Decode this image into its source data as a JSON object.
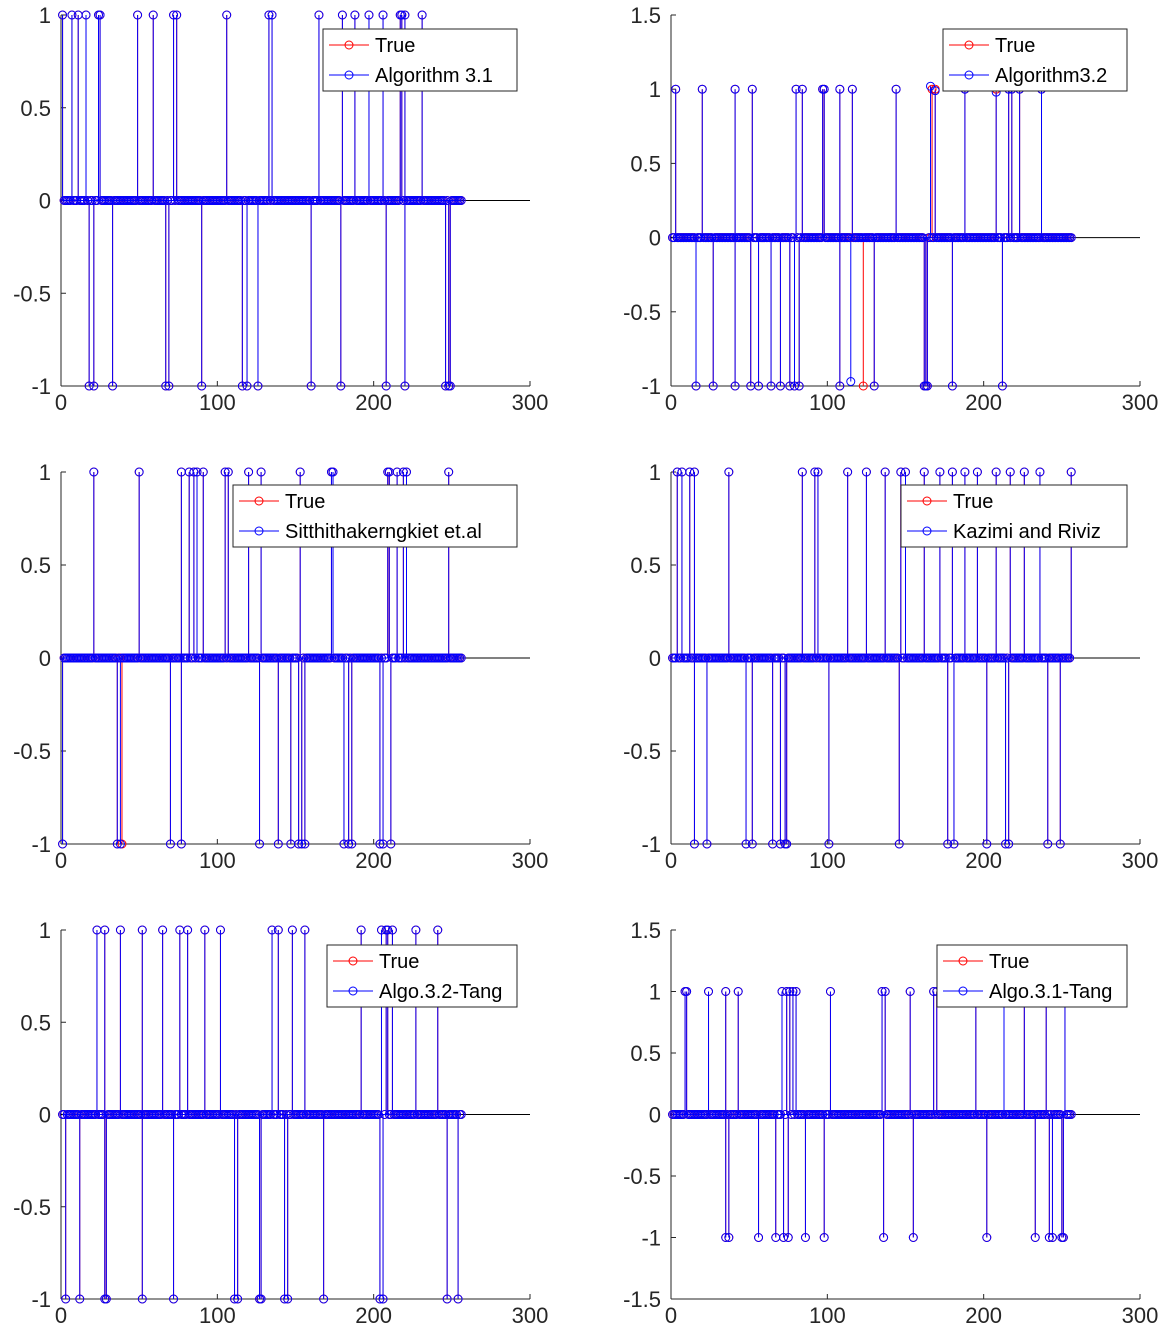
{
  "chart_data": [
    {
      "type": "stem",
      "xlim": [
        0,
        300
      ],
      "ylim": [
        -1,
        1
      ],
      "xticks": [
        "0",
        "100",
        "200",
        "300"
      ],
      "yticks": [
        "-1",
        "-0.5",
        "0",
        "0.5",
        "1"
      ],
      "xlabel": "",
      "ylabel": "",
      "title": "",
      "legend_position": "top-right",
      "series": [
        {
          "name": "True",
          "color": "#ff0000",
          "marker": "circle",
          "x": [
            1,
            7,
            11,
            16,
            24,
            25,
            49,
            59,
            72,
            74,
            106,
            133,
            135,
            165,
            180,
            188,
            197,
            206,
            217,
            218,
            220,
            231,
            18,
            21,
            33,
            67,
            69,
            90,
            116,
            119,
            126,
            160,
            179,
            208,
            220,
            246,
            248,
            249
          ],
          "y": [
            1,
            1,
            1,
            1,
            1,
            1,
            1,
            1,
            1,
            1,
            1,
            1,
            1,
            1,
            1,
            1,
            1,
            1,
            1,
            1,
            1,
            1,
            -1,
            -1,
            -1,
            -1,
            -1,
            -1,
            -1,
            -1,
            -1,
            -1,
            -1,
            -1,
            -1,
            -1,
            -1,
            -1
          ]
        },
        {
          "name": "Algorithm 3.1",
          "color": "#0000ff",
          "marker": "circle",
          "x": [
            1,
            7,
            11,
            16,
            24,
            25,
            49,
            59,
            72,
            74,
            106,
            133,
            135,
            165,
            180,
            188,
            197,
            206,
            217,
            218,
            220,
            231,
            18,
            21,
            33,
            67,
            69,
            90,
            116,
            119,
            126,
            160,
            179,
            208,
            220,
            246,
            248,
            249
          ],
          "y": [
            1,
            1,
            1,
            1,
            1,
            1,
            1,
            1,
            1,
            1,
            1,
            1,
            1,
            1,
            1,
            1,
            1,
            1,
            1,
            1,
            1,
            1,
            -1,
            -1,
            -1,
            -1,
            -1,
            -1,
            -1,
            -1,
            -1,
            -1,
            -1,
            -1,
            -1,
            -1,
            -1,
            -1
          ]
        }
      ]
    },
    {
      "type": "stem",
      "xlim": [
        0,
        300
      ],
      "ylim": [
        -1,
        1.5
      ],
      "xticks": [
        "0",
        "100",
        "200",
        "300"
      ],
      "yticks": [
        "-1",
        "-0.5",
        "0",
        "0.5",
        "1",
        "1.5"
      ],
      "xlabel": "",
      "ylabel": "",
      "title": "",
      "legend_position": "top-right",
      "series": [
        {
          "name": "True",
          "color": "#ff0000",
          "marker": "circle",
          "x": [
            3,
            20,
            41,
            52,
            80,
            84,
            97,
            98,
            108,
            116,
            144,
            167,
            169,
            188,
            208,
            216,
            218,
            223,
            237,
            16,
            27,
            41,
            51,
            56,
            64,
            70,
            76,
            79,
            82,
            108,
            123,
            130,
            162,
            163,
            164,
            180,
            212
          ],
          "y": [
            1,
            1,
            1,
            1,
            1,
            1,
            1,
            1,
            1,
            1,
            1,
            1,
            1,
            1,
            1,
            1,
            1,
            1,
            1,
            -1,
            -1,
            -1,
            -1,
            -1,
            -1,
            -1,
            -1,
            -1,
            -1,
            -1,
            -1,
            -1,
            -1,
            -1,
            -1,
            -1,
            -1
          ]
        },
        {
          "name": "Algorithm3.2",
          "color": "#0000ff",
          "marker": "circle",
          "x": [
            3,
            20,
            41,
            52,
            80,
            84,
            97,
            98,
            108,
            116,
            144,
            166,
            169,
            188,
            208,
            216,
            218,
            223,
            237,
            16,
            27,
            41,
            51,
            56,
            64,
            70,
            76,
            79,
            82,
            108,
            115,
            130,
            162,
            163,
            164,
            180,
            212
          ],
          "y": [
            1,
            1,
            1,
            1,
            1,
            1,
            1,
            1,
            1,
            1,
            1,
            1.02,
            0.99,
            1,
            0.98,
            1,
            1,
            1,
            1,
            -1,
            -1,
            -1,
            -1,
            -1,
            -1,
            -1,
            -1,
            -1,
            -1,
            -1,
            -0.97,
            -1,
            -1,
            -1,
            -1,
            -1,
            -1
          ]
        }
      ]
    },
    {
      "type": "stem",
      "xlim": [
        0,
        300
      ],
      "ylim": [
        -1,
        1
      ],
      "xticks": [
        "0",
        "100",
        "200",
        "300"
      ],
      "yticks": [
        "-1",
        "-0.5",
        "0",
        "0.5",
        "1"
      ],
      "xlabel": "",
      "ylabel": "",
      "title": "",
      "legend_position": "top-right",
      "series": [
        {
          "name": "True",
          "color": "#ff0000",
          "marker": "circle",
          "x": [
            21,
            50,
            77,
            82,
            85,
            87,
            91,
            105,
            107,
            120,
            128,
            153,
            173,
            174,
            209,
            210,
            215,
            219,
            221,
            248,
            1,
            36,
            39,
            70,
            77,
            127,
            139,
            147,
            152,
            154,
            156,
            181,
            184,
            186,
            204,
            206,
            211
          ],
          "y": [
            1,
            1,
            1,
            1,
            1,
            1,
            1,
            1,
            1,
            1,
            1,
            1,
            1,
            1,
            1,
            1,
            1,
            1,
            1,
            1,
            -1,
            -1,
            -1,
            -1,
            -1,
            -1,
            -1,
            -1,
            -1,
            -1,
            -1,
            -1,
            -1,
            -1,
            -1,
            -1,
            -1
          ]
        },
        {
          "name": "Sitthithakerngkiet et.al",
          "color": "#0000ff",
          "marker": "circle",
          "x": [
            21,
            50,
            77,
            82,
            85,
            87,
            91,
            105,
            107,
            120,
            128,
            153,
            173,
            174,
            209,
            210,
            215,
            219,
            221,
            248,
            1,
            36,
            38,
            70,
            77,
            127,
            139,
            147,
            152,
            154,
            156,
            181,
            184,
            186,
            204,
            206,
            211
          ],
          "y": [
            1,
            1,
            1,
            1,
            1,
            1,
            1,
            1,
            1,
            1,
            1,
            1,
            1,
            1,
            1,
            1,
            1,
            1,
            1,
            1,
            -1,
            -1,
            -1,
            -1,
            -1,
            -1,
            -1,
            -1,
            -1,
            -1,
            -1,
            -1,
            -1,
            -1,
            -1,
            -1,
            -1
          ]
        }
      ]
    },
    {
      "type": "stem",
      "xlim": [
        0,
        300
      ],
      "ylim": [
        -1,
        1
      ],
      "xticks": [
        "0",
        "100",
        "200",
        "300"
      ],
      "yticks": [
        "-1",
        "-0.5",
        "0",
        "0.5",
        "1"
      ],
      "xlabel": "",
      "ylabel": "",
      "title": "",
      "legend_position": "top-right",
      "series": [
        {
          "name": "True",
          "color": "#ff0000",
          "marker": "circle",
          "x": [
            4,
            7,
            12,
            15,
            37,
            84,
            92,
            94,
            113,
            125,
            137,
            147,
            150,
            162,
            172,
            180,
            188,
            196,
            208,
            217,
            226,
            236,
            256,
            15,
            23,
            48,
            52,
            65,
            70,
            73,
            74,
            101,
            146,
            177,
            181,
            202,
            214,
            216,
            241,
            249
          ],
          "y": [
            1,
            1,
            1,
            1,
            1,
            1,
            1,
            1,
            1,
            1,
            1,
            1,
            1,
            1,
            1,
            1,
            1,
            1,
            1,
            1,
            1,
            1,
            1,
            -1,
            -1,
            -1,
            -1,
            -1,
            -1,
            -1,
            -1,
            -1,
            -1,
            -1,
            -1,
            -1,
            -1,
            -1,
            -1,
            -1
          ]
        },
        {
          "name": "Kazimi and Riviz",
          "color": "#0000ff",
          "marker": "circle",
          "x": [
            4,
            7,
            12,
            15,
            37,
            84,
            92,
            94,
            113,
            125,
            137,
            147,
            150,
            162,
            172,
            180,
            188,
            196,
            208,
            217,
            226,
            236,
            256,
            15,
            23,
            48,
            52,
            65,
            70,
            73,
            74,
            101,
            146,
            177,
            181,
            202,
            214,
            216,
            241,
            249
          ],
          "y": [
            1,
            1,
            1,
            1,
            1,
            1,
            1,
            1,
            1,
            1,
            1,
            1,
            1,
            1,
            1,
            1,
            1,
            1,
            1,
            1,
            1,
            1,
            1,
            -1,
            -1,
            -1,
            -1,
            -1,
            -1,
            -1,
            -1,
            -1,
            -1,
            -1,
            -1,
            -1,
            -1,
            -1,
            -1,
            -1
          ]
        }
      ]
    },
    {
      "type": "stem",
      "xlim": [
        0,
        300
      ],
      "ylim": [
        -1,
        1
      ],
      "xticks": [
        "0",
        "100",
        "200",
        "300"
      ],
      "yticks": [
        "-1",
        "-0.5",
        "0",
        "0.5",
        "1"
      ],
      "xlabel": "",
      "ylabel": "",
      "title": "",
      "legend_position": "top-right",
      "series": [
        {
          "name": "True",
          "color": "#ff0000",
          "marker": "circle",
          "x": [
            23,
            28,
            38,
            52,
            65,
            76,
            81,
            92,
            102,
            135,
            139,
            148,
            156,
            192,
            205,
            208,
            209,
            212,
            227,
            241,
            3,
            12,
            28,
            29,
            52,
            72,
            111,
            113,
            127,
            128,
            143,
            145,
            168,
            204,
            206,
            247,
            254
          ],
          "y": [
            1,
            1,
            1,
            1,
            1,
            1,
            1,
            1,
            1,
            1,
            1,
            1,
            1,
            1,
            1,
            1,
            1,
            1,
            1,
            1,
            -1,
            -1,
            -1,
            -1,
            -1,
            -1,
            -1,
            -1,
            -1,
            -1,
            -1,
            -1,
            -1,
            -1,
            -1,
            -1,
            -1
          ]
        },
        {
          "name": "Algo.3.2-Tang",
          "color": "#0000ff",
          "marker": "circle",
          "x": [
            23,
            28,
            38,
            52,
            65,
            76,
            81,
            92,
            102,
            135,
            139,
            148,
            156,
            192,
            205,
            208,
            209,
            212,
            227,
            241,
            3,
            12,
            28,
            29,
            52,
            72,
            111,
            113,
            127,
            128,
            143,
            145,
            168,
            204,
            206,
            247,
            254
          ],
          "y": [
            1,
            1,
            1,
            1,
            1,
            1,
            1,
            1,
            1,
            1,
            1,
            1,
            1,
            1,
            1,
            1,
            1,
            1,
            1,
            1,
            -1,
            -1,
            -1,
            -1,
            -1,
            -1,
            -1,
            -1,
            -1,
            -1,
            -1,
            -1,
            -1,
            -1,
            -1,
            -1,
            -1
          ]
        }
      ]
    },
    {
      "type": "stem",
      "xlim": [
        0,
        300
      ],
      "ylim": [
        -1.5,
        1.5
      ],
      "xticks": [
        "0",
        "100",
        "200",
        "300"
      ],
      "yticks": [
        "-1.5",
        "-1",
        "-0.5",
        "0",
        "0.5",
        "1",
        "1.5"
      ],
      "xlabel": "",
      "ylabel": "",
      "title": "",
      "legend_position": "top-right",
      "series": [
        {
          "name": "True",
          "color": "#ff0000",
          "marker": "circle",
          "x": [
            9,
            10,
            24,
            35,
            43,
            71,
            74,
            76,
            78,
            80,
            102,
            135,
            137,
            153,
            168,
            170,
            195,
            213,
            226,
            240,
            252,
            35,
            37,
            56,
            67,
            72,
            75,
            86,
            98,
            136,
            155,
            202,
            233,
            242,
            244,
            250,
            251
          ],
          "y": [
            1,
            1,
            1,
            1,
            1,
            1,
            1,
            1,
            1,
            1,
            1,
            1,
            1,
            1,
            1,
            1,
            1,
            1,
            1,
            1,
            1,
            -1,
            -1,
            -1,
            -1,
            -1,
            -1,
            -1,
            -1,
            -1,
            -1,
            -1,
            -1,
            -1,
            -1,
            -1,
            -1
          ]
        },
        {
          "name": "Algo.3.1-Tang",
          "color": "#0000ff",
          "marker": "circle",
          "x": [
            9,
            10,
            24,
            35,
            43,
            71,
            74,
            76,
            78,
            80,
            102,
            135,
            137,
            153,
            168,
            170,
            195,
            213,
            226,
            240,
            252,
            35,
            37,
            56,
            67,
            72,
            75,
            86,
            98,
            136,
            155,
            202,
            233,
            242,
            244,
            250,
            251
          ],
          "y": [
            1,
            1,
            1,
            1,
            1,
            1,
            1,
            1,
            1,
            1,
            1,
            1,
            1,
            1,
            1,
            1,
            1,
            1,
            1,
            1,
            1,
            -1,
            -1,
            -1,
            -1,
            -1,
            -1,
            -1,
            -1,
            -1,
            -1,
            -1,
            -1,
            -1,
            -1,
            -1,
            -1
          ]
        }
      ]
    }
  ]
}
